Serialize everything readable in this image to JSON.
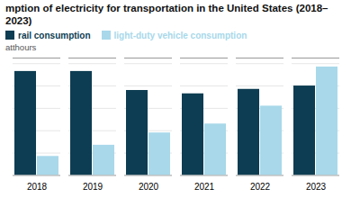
{
  "chart_data": {
    "type": "bar",
    "title": "mption of electricity for transportation in the United States (2018–2023)",
    "ylabel": "atthours",
    "categories": [
      "2018",
      "2019",
      "2020",
      "2021",
      "2022",
      "2023"
    ],
    "series": [
      {
        "name": "rail consumption",
        "color": "#0d3d52",
        "values": [
          0.93,
          0.93,
          0.76,
          0.73,
          0.77,
          0.8
        ]
      },
      {
        "name": "light-duty vehicle consumption",
        "color": "#a8d8ea",
        "values": [
          0.17,
          0.27,
          0.38,
          0.46,
          0.62,
          0.97
        ]
      }
    ],
    "ylim": [
      0,
      1.05
    ],
    "yticks": [
      0.2,
      0.4,
      0.6,
      0.8,
      1.0
    ],
    "grid": true,
    "legend": "top",
    "tick_labels": "x"
  }
}
